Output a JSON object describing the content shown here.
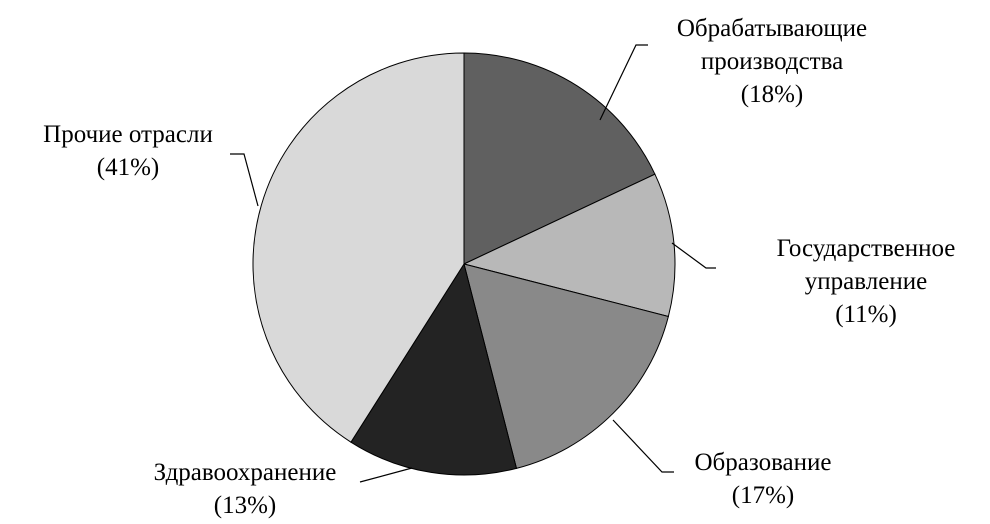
{
  "chart_data": {
    "type": "pie",
    "categories": [
      "Обрабатывающие производства",
      "Государственное управление",
      "Образование",
      "Здравоохранение",
      "Прочие отрасли"
    ],
    "values": [
      18,
      11,
      17,
      13,
      41
    ],
    "value_labels": [
      "(18%)",
      "(11%)",
      "(17%)",
      "(13%)",
      "(41%)"
    ],
    "colors": [
      "#606060",
      "#b8b8b8",
      "#898989",
      "#232323",
      "#d9d9d9"
    ]
  }
}
